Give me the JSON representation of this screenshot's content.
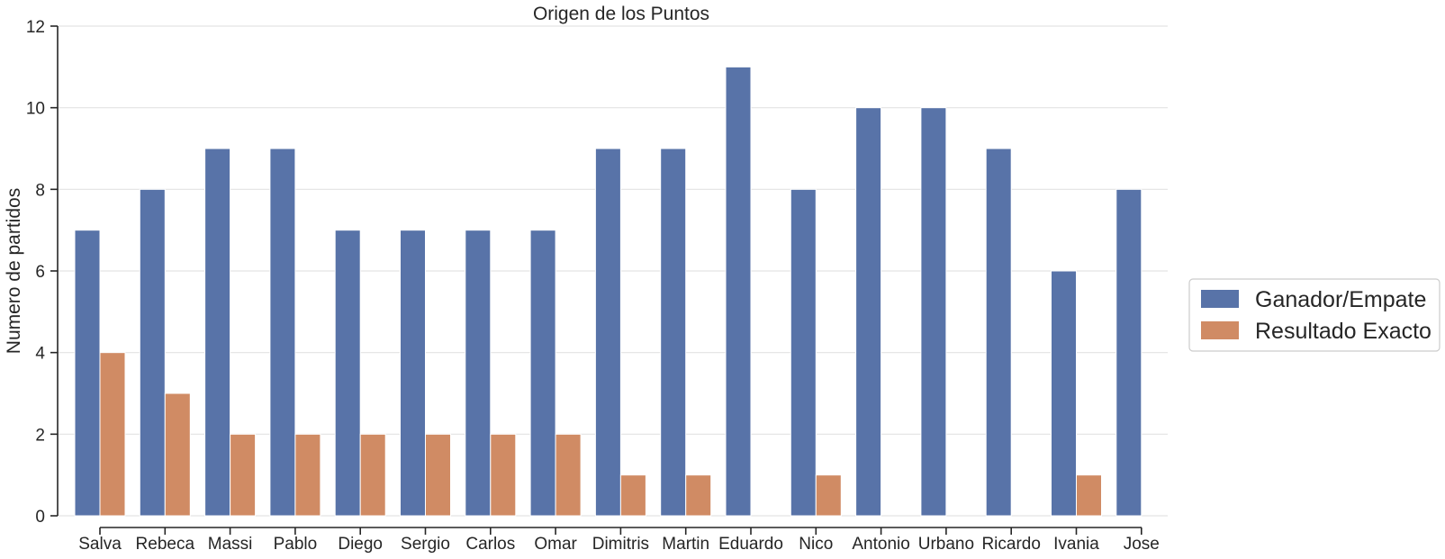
{
  "chart_data": {
    "type": "bar",
    "title": "Origen de los Puntos",
    "xlabel": "",
    "ylabel": "Numero de partidos",
    "ylim": [
      0,
      12
    ],
    "yticks": [
      "0",
      "2",
      "4",
      "6",
      "8",
      "10",
      "12"
    ],
    "grid": "horizontal",
    "legend_position": "right",
    "categories": [
      "Salva",
      "Rebeca",
      "Massi",
      "Pablo",
      "Diego",
      "Sergio",
      "Carlos",
      "Omar",
      "Dimitris",
      "Martin",
      "Eduardo",
      "Nico",
      "Antonio",
      "Urbano",
      "Ricardo",
      "Ivania",
      "Jose"
    ],
    "series": [
      {
        "name": "Ganador/Empate",
        "color": "#5873a8",
        "values": [
          7,
          8,
          9,
          9,
          7,
          7,
          7,
          7,
          9,
          9,
          11,
          8,
          10,
          10,
          9,
          6,
          8
        ]
      },
      {
        "name": "Resultado Exacto",
        "color": "#d08b64",
        "values": [
          4,
          3,
          2,
          2,
          2,
          2,
          2,
          2,
          1,
          1,
          0,
          1,
          0,
          0,
          0,
          1,
          0
        ]
      }
    ]
  }
}
